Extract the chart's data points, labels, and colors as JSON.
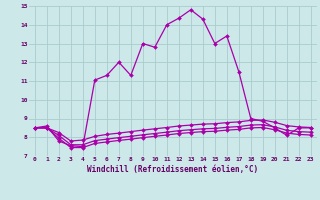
{
  "xlabel": "Windchill (Refroidissement éolien,°C)",
  "x_labels": [
    "0",
    "1",
    "2",
    "3",
    "4",
    "5",
    "6",
    "7",
    "8",
    "9",
    "10",
    "11",
    "12",
    "13",
    "14",
    "15",
    "16",
    "17",
    "18",
    "19",
    "20",
    "21",
    "22",
    "23"
  ],
  "ylim": [
    7,
    15
  ],
  "xlim": [
    -0.5,
    23.5
  ],
  "yticks": [
    7,
    8,
    9,
    10,
    11,
    12,
    13,
    14,
    15
  ],
  "background_color": "#cce8e8",
  "grid_color": "#aacccc",
  "line_color": "#aa00aa",
  "series1_x": [
    0,
    1,
    2,
    3,
    4,
    5,
    6,
    7,
    8,
    9,
    10,
    11,
    12,
    13,
    14,
    15,
    16,
    17,
    18,
    19,
    20,
    21,
    22,
    23
  ],
  "series1_y": [
    8.5,
    8.6,
    7.8,
    7.55,
    7.5,
    11.05,
    11.3,
    12.0,
    11.3,
    13.0,
    12.8,
    14.0,
    14.35,
    14.8,
    14.3,
    13.0,
    13.4,
    11.5,
    9.0,
    8.85,
    8.5,
    8.1,
    8.5,
    8.5
  ],
  "series2_x": [
    0,
    1,
    2,
    3,
    4,
    5,
    6,
    7,
    8,
    9,
    10,
    11,
    12,
    13,
    14,
    15,
    16,
    17,
    18,
    19,
    20,
    21,
    22,
    23
  ],
  "series2_y": [
    8.5,
    8.5,
    8.25,
    7.8,
    7.85,
    8.05,
    8.15,
    8.22,
    8.3,
    8.38,
    8.45,
    8.52,
    8.6,
    8.65,
    8.7,
    8.72,
    8.78,
    8.82,
    8.9,
    8.92,
    8.8,
    8.62,
    8.55,
    8.52
  ],
  "series3_x": [
    0,
    1,
    2,
    3,
    4,
    5,
    6,
    7,
    8,
    9,
    10,
    11,
    12,
    13,
    14,
    15,
    16,
    17,
    18,
    19,
    20,
    21,
    22,
    23
  ],
  "series3_y": [
    8.5,
    8.5,
    8.1,
    7.6,
    7.6,
    7.82,
    7.9,
    7.98,
    8.05,
    8.13,
    8.2,
    8.27,
    8.35,
    8.4,
    8.45,
    8.47,
    8.53,
    8.57,
    8.65,
    8.67,
    8.55,
    8.37,
    8.3,
    8.27
  ],
  "series4_x": [
    0,
    1,
    2,
    3,
    4,
    5,
    6,
    7,
    8,
    9,
    10,
    11,
    12,
    13,
    14,
    15,
    16,
    17,
    18,
    19,
    20,
    21,
    22,
    23
  ],
  "series4_y": [
    8.5,
    8.5,
    7.95,
    7.45,
    7.45,
    7.67,
    7.75,
    7.83,
    7.9,
    7.98,
    8.05,
    8.12,
    8.2,
    8.25,
    8.3,
    8.32,
    8.38,
    8.42,
    8.5,
    8.52,
    8.4,
    8.22,
    8.15,
    8.12
  ]
}
